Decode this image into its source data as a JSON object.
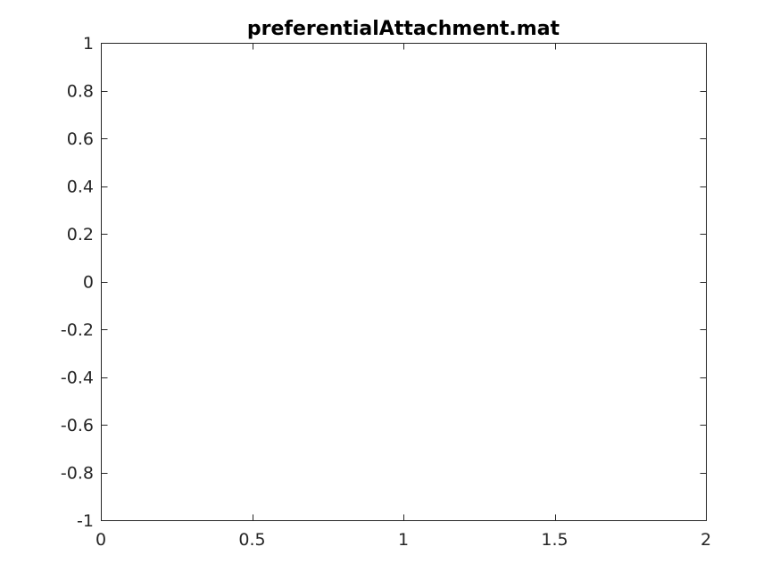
{
  "chart_data": {
    "type": "line",
    "title": "preferentialAttachment.mat",
    "xlabel": "",
    "ylabel": "",
    "xlim": [
      0,
      2
    ],
    "ylim": [
      -1,
      1
    ],
    "x_ticks": [
      0,
      0.5,
      1,
      1.5,
      2
    ],
    "x_tick_labels": [
      "0",
      "0.5",
      "1",
      "1.5",
      "2"
    ],
    "y_ticks": [
      1,
      0.8,
      0.6,
      0.4,
      0.2,
      0,
      -0.2,
      -0.4,
      -0.6,
      -0.8,
      -1
    ],
    "y_tick_labels": [
      "1",
      "0.8",
      "0.6",
      "0.4",
      "0.2",
      "0",
      "-0.2",
      "-0.4",
      "-0.6",
      "-0.8",
      "-1"
    ],
    "grid": false,
    "box": true,
    "series": []
  },
  "colors": {
    "background": "#ffffff",
    "axes": "#262626",
    "title": "#000000"
  }
}
